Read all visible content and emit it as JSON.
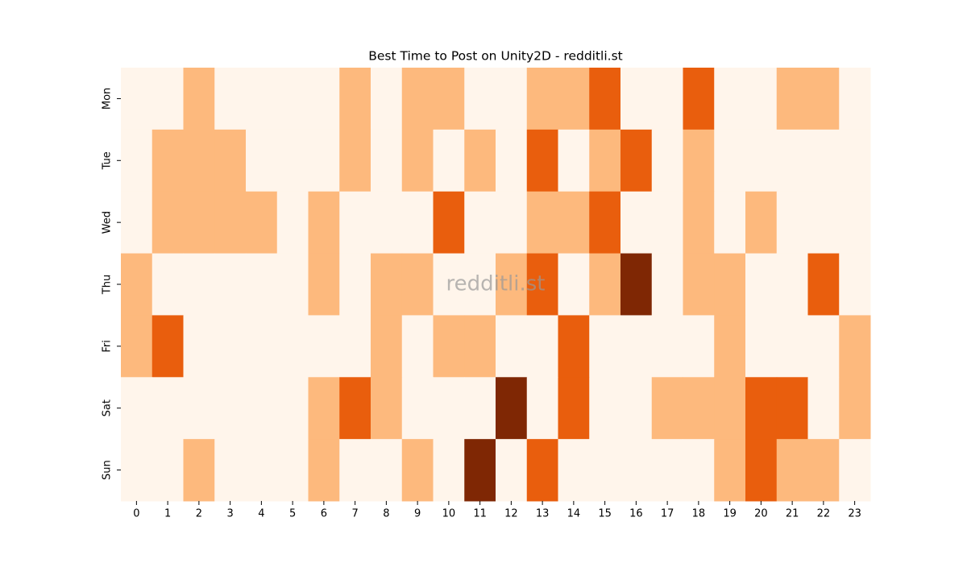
{
  "chart_data": {
    "type": "heatmap",
    "title": "Best Time to Post on Unity2D - redditli.st",
    "watermark": "redditli.st",
    "x_categories": [
      0,
      1,
      2,
      3,
      4,
      5,
      6,
      7,
      8,
      9,
      10,
      11,
      12,
      13,
      14,
      15,
      16,
      17,
      18,
      19,
      20,
      21,
      22,
      23
    ],
    "y_categories": [
      "Mon",
      "Tue",
      "Wed",
      "Thu",
      "Fri",
      "Sat",
      "Sun"
    ],
    "colors": [
      "#fff5eb",
      "#fdb97d",
      "#e95e0d",
      "#7f2704"
    ],
    "values": [
      [
        0,
        0,
        1,
        0,
        0,
        0,
        0,
        1,
        0,
        1,
        1,
        0,
        0,
        1,
        1,
        2,
        0,
        0,
        2,
        0,
        0,
        1,
        1,
        0
      ],
      [
        0,
        1,
        1,
        1,
        0,
        0,
        0,
        1,
        0,
        1,
        0,
        1,
        0,
        2,
        0,
        1,
        2,
        0,
        1,
        0,
        0,
        0,
        0,
        0
      ],
      [
        0,
        1,
        1,
        1,
        1,
        0,
        1,
        0,
        0,
        0,
        2,
        0,
        0,
        1,
        1,
        2,
        0,
        0,
        1,
        0,
        1,
        0,
        0,
        0
      ],
      [
        1,
        0,
        0,
        0,
        0,
        0,
        1,
        0,
        1,
        1,
        0,
        0,
        1,
        2,
        0,
        1,
        3,
        0,
        1,
        1,
        0,
        0,
        2,
        0
      ],
      [
        1,
        2,
        0,
        0,
        0,
        0,
        0,
        0,
        1,
        0,
        1,
        1,
        0,
        0,
        2,
        0,
        0,
        0,
        0,
        1,
        0,
        0,
        0,
        1
      ],
      [
        0,
        0,
        0,
        0,
        0,
        0,
        1,
        2,
        1,
        0,
        0,
        0,
        3,
        0,
        2,
        0,
        0,
        1,
        1,
        1,
        2,
        2,
        0,
        1
      ],
      [
        0,
        0,
        1,
        0,
        0,
        0,
        1,
        0,
        0,
        1,
        0,
        3,
        0,
        2,
        0,
        0,
        0,
        0,
        0,
        1,
        2,
        1,
        1,
        0
      ]
    ]
  }
}
